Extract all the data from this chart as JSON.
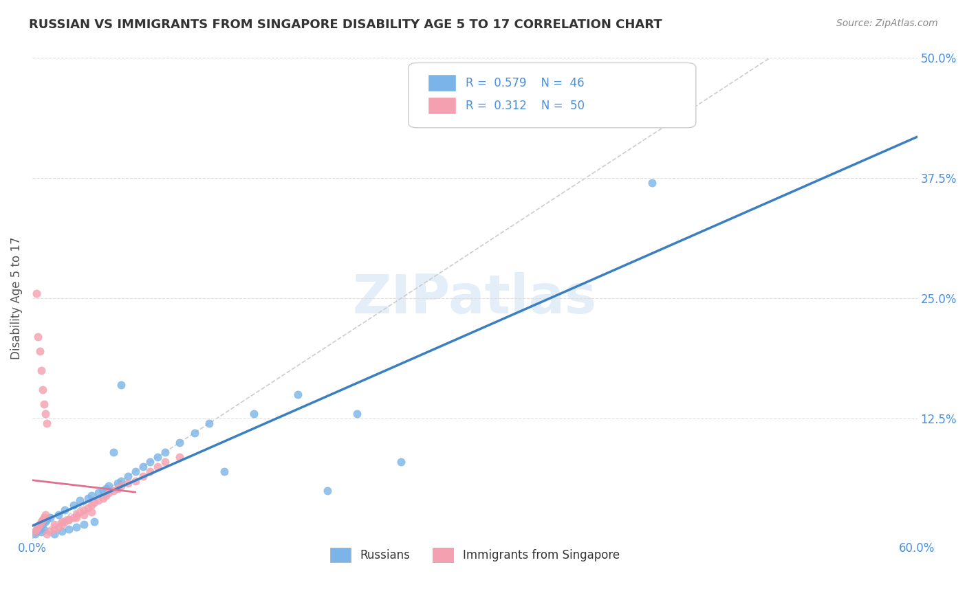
{
  "title": "RUSSIAN VS IMMIGRANTS FROM SINGAPORE DISABILITY AGE 5 TO 17 CORRELATION CHART",
  "source": "Source: ZipAtlas.com",
  "xlim": [
    0.0,
    0.6
  ],
  "ylim": [
    0.0,
    0.5
  ],
  "ylabel": "Disability Age 5 to 17",
  "legend_r1": "R = 0.579",
  "legend_n1": "N = 46",
  "legend_r2": "R = 0.312",
  "legend_n2": "N = 50",
  "russian_color": "#7ab4e8",
  "singapore_color": "#f4a0b0",
  "trend_russian_color": "#3a7fc1",
  "trend_singapore_color": "#e07090",
  "ref_line_color": "#cccccc",
  "grid_color": "#dddddd",
  "tick_color": "#4a90d9",
  "russians_x": [
    0.002,
    0.003,
    0.004,
    0.005,
    0.006,
    0.007,
    0.008,
    0.009,
    0.01,
    0.012,
    0.015,
    0.018,
    0.02,
    0.022,
    0.025,
    0.028,
    0.03,
    0.032,
    0.035,
    0.038,
    0.04,
    0.042,
    0.045,
    0.048,
    0.05,
    0.052,
    0.055,
    0.058,
    0.06,
    0.065,
    0.07,
    0.075,
    0.08,
    0.085,
    0.09,
    0.1,
    0.11,
    0.12,
    0.13,
    0.15,
    0.18,
    0.2,
    0.22,
    0.25,
    0.42,
    0.06
  ],
  "russians_y": [
    0.005,
    0.008,
    0.01,
    0.012,
    0.007,
    0.015,
    0.009,
    0.018,
    0.02,
    0.022,
    0.005,
    0.025,
    0.008,
    0.03,
    0.01,
    0.035,
    0.012,
    0.04,
    0.015,
    0.042,
    0.045,
    0.018,
    0.048,
    0.05,
    0.052,
    0.055,
    0.09,
    0.058,
    0.06,
    0.065,
    0.07,
    0.075,
    0.08,
    0.085,
    0.09,
    0.1,
    0.11,
    0.12,
    0.07,
    0.13,
    0.15,
    0.05,
    0.13,
    0.08,
    0.37,
    0.16
  ],
  "singapore_x": [
    0.003,
    0.004,
    0.005,
    0.006,
    0.007,
    0.008,
    0.009,
    0.01,
    0.002,
    0.003,
    0.004,
    0.005,
    0.006,
    0.007,
    0.008,
    0.009,
    0.01,
    0.012,
    0.015,
    0.018,
    0.02,
    0.022,
    0.025,
    0.028,
    0.03,
    0.032,
    0.035,
    0.038,
    0.04,
    0.042,
    0.045,
    0.048,
    0.05,
    0.052,
    0.055,
    0.058,
    0.06,
    0.065,
    0.07,
    0.075,
    0.08,
    0.085,
    0.09,
    0.1,
    0.015,
    0.02,
    0.025,
    0.03,
    0.035,
    0.04
  ],
  "singapore_y": [
    0.255,
    0.21,
    0.195,
    0.175,
    0.155,
    0.14,
    0.13,
    0.12,
    0.008,
    0.01,
    0.012,
    0.015,
    0.018,
    0.02,
    0.022,
    0.025,
    0.005,
    0.008,
    0.01,
    0.012,
    0.015,
    0.018,
    0.02,
    0.022,
    0.025,
    0.028,
    0.03,
    0.032,
    0.035,
    0.038,
    0.04,
    0.042,
    0.045,
    0.048,
    0.05,
    0.052,
    0.055,
    0.058,
    0.06,
    0.065,
    0.07,
    0.075,
    0.08,
    0.085,
    0.015,
    0.018,
    0.02,
    0.022,
    0.025,
    0.028
  ]
}
